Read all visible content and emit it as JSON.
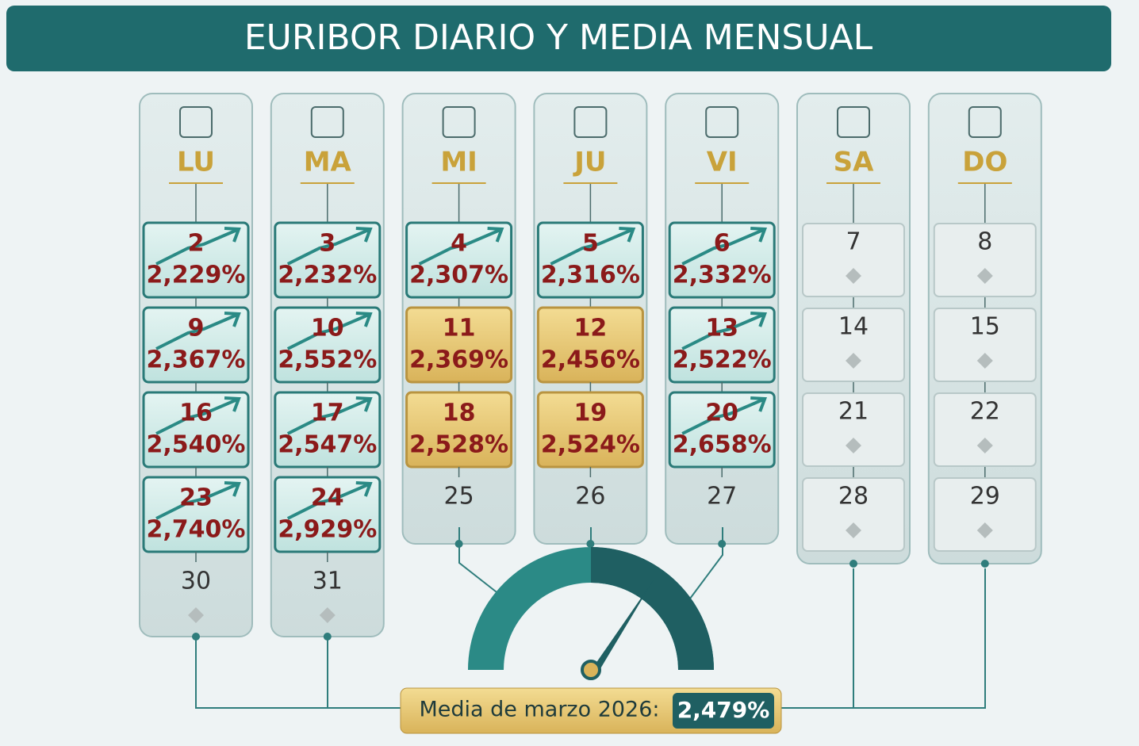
{
  "title": "EURIBOR DIARIO Y MEDIA MENSUAL",
  "columns": [
    {
      "day": "LU",
      "cells": [
        {
          "day": "2",
          "rate": "2,229%",
          "color": "teal"
        },
        {
          "day": "9",
          "rate": "2,367%",
          "color": "teal"
        },
        {
          "day": "16",
          "rate": "2,540%",
          "color": "teal"
        },
        {
          "day": "23",
          "rate": "2,740%",
          "color": "teal"
        },
        {
          "day": "30"
        }
      ]
    },
    {
      "day": "MA",
      "cells": [
        {
          "day": "3",
          "rate": "2,232%",
          "color": "teal"
        },
        {
          "day": "10",
          "rate": "2,552%",
          "color": "teal"
        },
        {
          "day": "17",
          "rate": "2,547%",
          "color": "teal"
        },
        {
          "day": "24",
          "rate": "2,929%",
          "color": "teal"
        },
        {
          "day": "31"
        }
      ]
    },
    {
      "day": "MI",
      "cells": [
        {
          "day": "4",
          "rate": "2,307%",
          "color": "teal"
        },
        {
          "day": "11",
          "rate": "2,369%",
          "color": "gold"
        },
        {
          "day": "18",
          "rate": "2,528%",
          "color": "gold"
        },
        {
          "day": "25"
        }
      ]
    },
    {
      "day": "JU",
      "cells": [
        {
          "day": "5",
          "rate": "2,316%",
          "color": "teal"
        },
        {
          "day": "12",
          "rate": "2,456%",
          "color": "gold"
        },
        {
          "day": "19",
          "rate": "2,524%",
          "color": "gold"
        },
        {
          "day": "26"
        }
      ]
    },
    {
      "day": "VI",
      "cells": [
        {
          "day": "6",
          "rate": "2,332%",
          "color": "teal"
        },
        {
          "day": "13",
          "rate": "2,522%",
          "color": "teal"
        },
        {
          "day": "20",
          "rate": "2,658%",
          "color": "teal"
        },
        {
          "day": "27"
        }
      ]
    },
    {
      "day": "SA",
      "cells": [
        {
          "day": "7"
        },
        {
          "day": "14"
        },
        {
          "day": "21"
        },
        {
          "day": "28"
        }
      ]
    },
    {
      "day": "DO",
      "cells": [
        {
          "day": "8"
        },
        {
          "day": "15"
        },
        {
          "day": "22"
        },
        {
          "day": "29"
        }
      ]
    }
  ],
  "footer": {
    "label": "Media de marzo 2026:",
    "value": "2,479%"
  }
}
